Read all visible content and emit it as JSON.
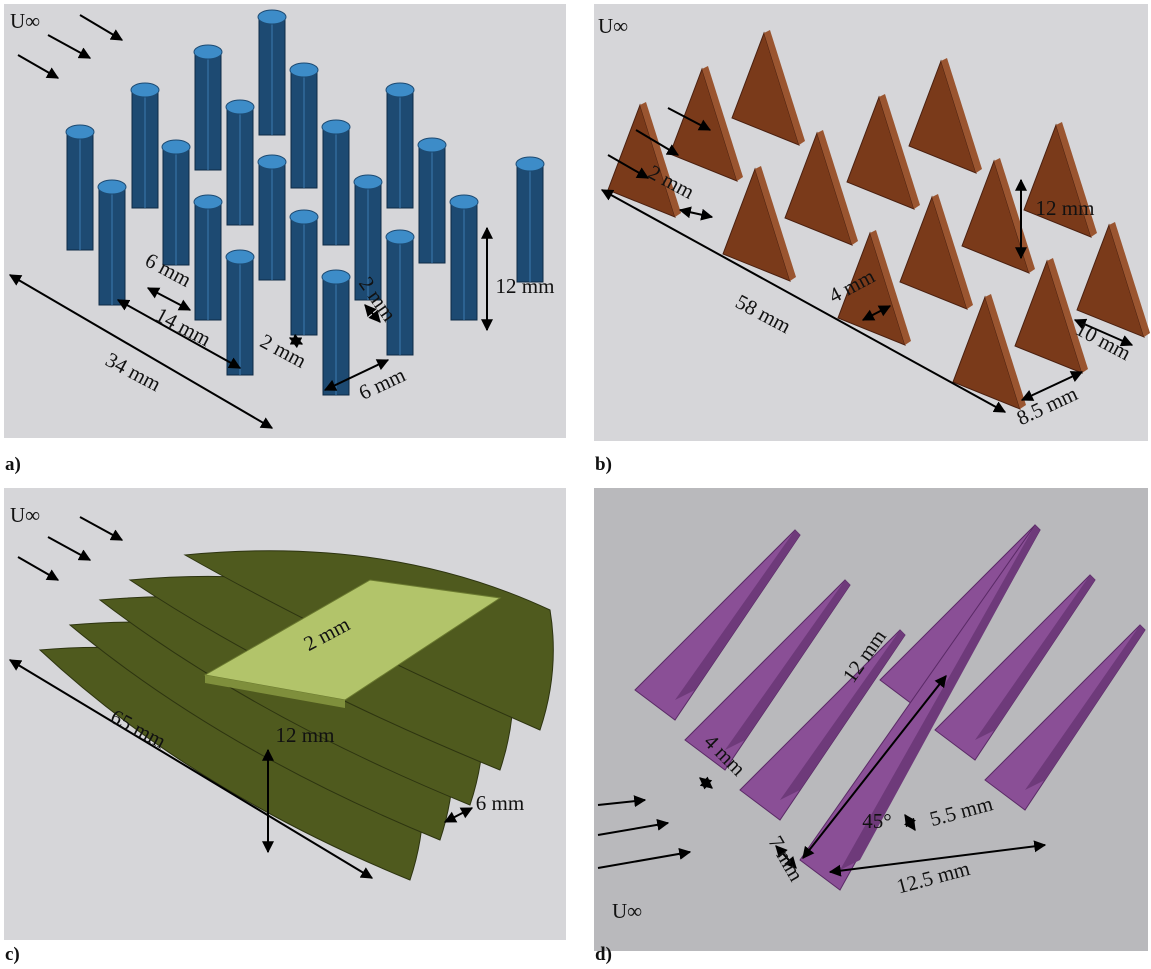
{
  "panels": [
    {
      "label": "a)",
      "flow": "U∞",
      "dimensions": [
        "34 mm",
        "14 mm",
        "6 mm",
        "2 mm",
        "2 mm",
        "6 mm",
        "12 mm"
      ]
    },
    {
      "label": "b)",
      "flow": "U∞",
      "dimensions": [
        "2 mm",
        "58 mm",
        "12 mm",
        "4 mm",
        "10 mm",
        "8.5 mm"
      ]
    },
    {
      "label": "c)",
      "flow": "U∞",
      "dimensions": [
        "65 mm",
        "2 mm",
        "12 mm",
        "6 mm"
      ]
    },
    {
      "label": "d)",
      "flow": "U∞",
      "dimensions": [
        "4 mm",
        "12 mm",
        "45°",
        "5.5 mm",
        "7 mm",
        "12.5 mm"
      ]
    }
  ]
}
